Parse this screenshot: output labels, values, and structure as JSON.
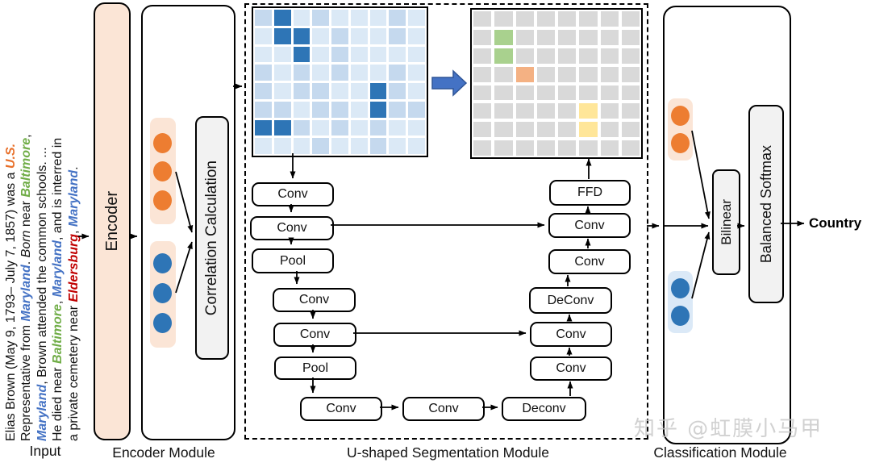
{
  "labels": {
    "input": "Input",
    "encoder_module": "Encoder Module",
    "segmentation_module": "U-shaped Segmentation Module",
    "classification_module": "Classification Module",
    "encoder": "Encoder",
    "correlation": "Correlation Calculation",
    "bilinear": "Bilinear",
    "balanced_softmax": "Balanced Softmax",
    "country": "Country",
    "watermark": "知乎 @虹膜小马甲"
  },
  "text_colors": {
    "orange": "#e8702a",
    "blue": "#4472c4",
    "green": "#70ad47",
    "red": "#c00000"
  },
  "input_text": {
    "lines": [
      [
        {
          "t": "Elias Brown (May 9, 1793– July 7, 1857) was a "
        },
        {
          "t": "U.S.",
          "c": "orange",
          "b": true,
          "i": true
        }
      ],
      [
        {
          "t": "Representative from "
        },
        {
          "t": "Maryland",
          "c": "blue",
          "b": true,
          "i": true
        },
        {
          "t": ". "
        },
        {
          "t": "Born",
          "i": true
        },
        {
          "t": " near "
        },
        {
          "t": "Baltimore",
          "c": "green",
          "b": true,
          "i": true
        },
        {
          "t": ","
        }
      ],
      [
        {
          "t": "Maryland",
          "c": "blue",
          "b": true,
          "i": true
        },
        {
          "t": ", Brown attended the common schools. ..."
        }
      ],
      [
        {
          "t": "He died near "
        },
        {
          "t": "Baltimore",
          "c": "green",
          "b": true,
          "i": true
        },
        {
          "t": ", "
        },
        {
          "t": "Maryland",
          "c": "blue",
          "b": true,
          "i": true
        },
        {
          "t": ", and is interred in"
        }
      ],
      [
        {
          "t": "a private cemetery near "
        },
        {
          "t": "Eldersburg",
          "c": "red",
          "b": true,
          "i": true
        },
        {
          "t": ", "
        },
        {
          "t": "Maryland",
          "c": "blue",
          "b": true,
          "i": true
        },
        {
          "t": "."
        }
      ]
    ]
  },
  "unet": {
    "left": [
      "Conv",
      "Conv",
      "Pool",
      "Conv",
      "Conv",
      "Pool"
    ],
    "bottom": [
      "Conv",
      "Conv",
      "Deconv"
    ],
    "right": [
      "FFD",
      "Conv",
      "Conv",
      "DeConv",
      "Conv",
      "Conv"
    ]
  },
  "heatmaps": {
    "correlation": {
      "rows": 8,
      "cols": 9,
      "palette": [
        "#dbe9f6",
        "#c5d9ee",
        "#9dc3e6",
        "#2e75b6"
      ],
      "cells": [
        [
          1,
          3,
          0,
          1,
          0,
          0,
          0,
          1,
          0
        ],
        [
          0,
          3,
          3,
          0,
          1,
          0,
          0,
          1,
          0
        ],
        [
          0,
          0,
          3,
          0,
          1,
          0,
          0,
          0,
          0
        ],
        [
          1,
          0,
          1,
          0,
          1,
          0,
          0,
          1,
          0
        ],
        [
          1,
          0,
          1,
          1,
          0,
          0,
          3,
          1,
          0
        ],
        [
          1,
          1,
          0,
          1,
          1,
          0,
          3,
          1,
          1
        ],
        [
          3,
          3,
          1,
          0,
          1,
          0,
          1,
          0,
          0
        ],
        [
          0,
          0,
          0,
          1,
          0,
          0,
          1,
          0,
          0
        ]
      ]
    },
    "segmentation": {
      "rows": 8,
      "cols": 8,
      "palette": [
        "#d9d9d9",
        "#a9d18e",
        "#f4b183",
        "#ffe699"
      ],
      "cells": [
        [
          0,
          0,
          0,
          0,
          0,
          0,
          0,
          0
        ],
        [
          0,
          1,
          0,
          0,
          0,
          0,
          0,
          0
        ],
        [
          0,
          1,
          0,
          0,
          0,
          0,
          0,
          0
        ],
        [
          0,
          0,
          2,
          0,
          0,
          0,
          0,
          0
        ],
        [
          0,
          0,
          0,
          0,
          0,
          0,
          0,
          0
        ],
        [
          0,
          0,
          0,
          0,
          0,
          3,
          0,
          0
        ],
        [
          0,
          0,
          0,
          0,
          0,
          3,
          0,
          0
        ],
        [
          0,
          0,
          0,
          0,
          0,
          0,
          0,
          0
        ]
      ]
    }
  },
  "colors": {
    "peach": "#fbe5d6",
    "orange_dot": "#ed7d31",
    "blue_dot": "#2e75b6",
    "blue_container": "#dbe9f7",
    "box_gray": "#f2f2f2",
    "arrow_blue": "#4472c4",
    "arrow_blue_edge": "#2f5597"
  }
}
